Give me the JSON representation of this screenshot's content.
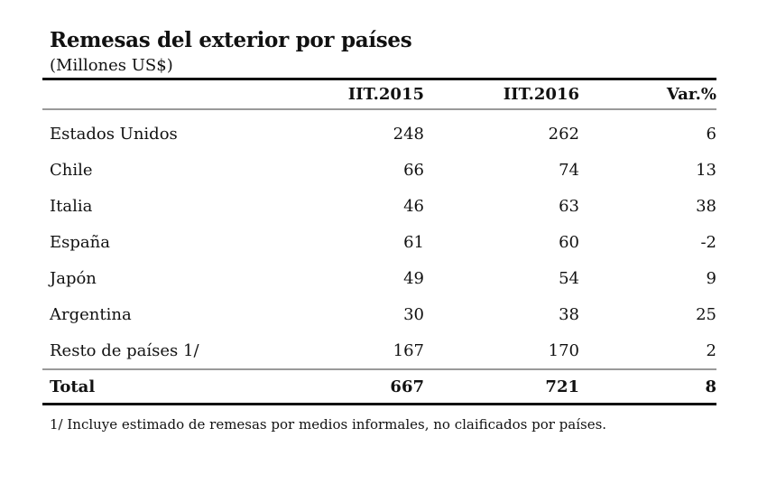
{
  "title": "Remesas del exterior por países",
  "subtitle": "(Millones US$)",
  "table": {
    "headers": [
      "",
      "IIT.2015",
      "IIT.2016",
      "Var.%"
    ],
    "rows": [
      {
        "country": "Estados Unidos",
        "v2015": "248",
        "v2016": "262",
        "var": "6"
      },
      {
        "country": "Chile",
        "v2015": "66",
        "v2016": "74",
        "var": "13"
      },
      {
        "country": "Italia",
        "v2015": "46",
        "v2016": "63",
        "var": "38"
      },
      {
        "country": "España",
        "v2015": "61",
        "v2016": "60",
        "var": "-2"
      },
      {
        "country": "Japón",
        "v2015": "49",
        "v2016": "54",
        "var": "9"
      },
      {
        "country": "Argentina",
        "v2015": "30",
        "v2016": "38",
        "var": "25"
      },
      {
        "country": "Resto de países 1/",
        "v2015": "167",
        "v2016": "170",
        "var": "2"
      }
    ],
    "total": {
      "label": "Total",
      "v2015": "667",
      "v2016": "721",
      "var": "8"
    }
  },
  "footnote": "1/ Incluye estimado de remesas por medios informales, no claificados por países."
}
